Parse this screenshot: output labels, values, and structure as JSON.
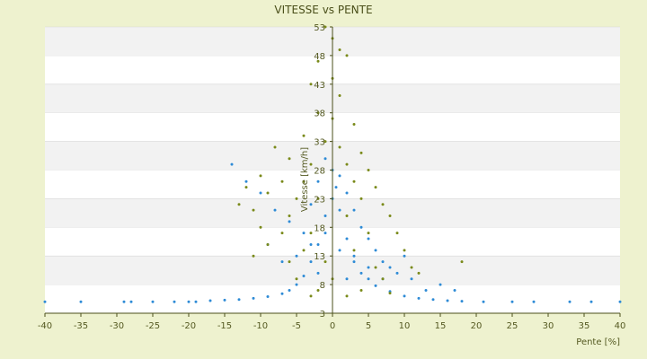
{
  "chart_data": {
    "type": "scatter",
    "title": "VITESSE vs PENTE",
    "xlabel": "Pente [%]",
    "ylabel": "Vitesse [km/h]",
    "xlim": [
      -40,
      40
    ],
    "ylim": [
      3,
      53
    ],
    "x_ticks": [
      "-40",
      "-35",
      "-30",
      "-25",
      "-20",
      "-15",
      "-10",
      "-5",
      "0",
      "5",
      "10",
      "15",
      "20",
      "25",
      "30",
      "35",
      "40"
    ],
    "y_ticks": [
      "3",
      "8",
      "13",
      "18",
      "23",
      "28",
      "33",
      "38",
      "43",
      "48",
      "53"
    ],
    "grid": "horizontal-bands",
    "colors": {
      "background": "#eef2cf",
      "plot": "#ffffff",
      "band": "#f2f2f2",
      "axis": "#4a4f1a"
    },
    "series": [
      {
        "color": "#2e8bd6",
        "marker": "dot",
        "points": [
          [
            -40,
            5
          ],
          [
            -35,
            5
          ],
          [
            -29,
            5
          ],
          [
            -28,
            5
          ],
          [
            -25,
            5
          ],
          [
            -22,
            5
          ],
          [
            -20,
            5
          ],
          [
            -19,
            5
          ],
          [
            -17,
            5.2
          ],
          [
            -15,
            5.3
          ],
          [
            -13,
            5.4
          ],
          [
            -11,
            5.6
          ],
          [
            -9,
            5.9
          ],
          [
            -7,
            6.4
          ],
          [
            -6,
            7
          ],
          [
            -5,
            8
          ],
          [
            -4,
            9.5
          ],
          [
            -3,
            12
          ],
          [
            -2,
            15
          ],
          [
            -1,
            20
          ],
          [
            0,
            23
          ],
          [
            0.5,
            25
          ],
          [
            1,
            21
          ],
          [
            2,
            16
          ],
          [
            3,
            12
          ],
          [
            4,
            10
          ],
          [
            5,
            9
          ],
          [
            6,
            7.8
          ],
          [
            8,
            6.8
          ],
          [
            10,
            6
          ],
          [
            12,
            5.6
          ],
          [
            14,
            5.4
          ],
          [
            16,
            5.2
          ],
          [
            18,
            5.1
          ],
          [
            21,
            5
          ],
          [
            25,
            5
          ],
          [
            28,
            5
          ],
          [
            33,
            5
          ],
          [
            36,
            5
          ],
          [
            40,
            5
          ],
          [
            -14,
            29
          ],
          [
            -12,
            26
          ],
          [
            -10,
            24
          ],
          [
            -8,
            21
          ],
          [
            -6,
            19
          ],
          [
            -4,
            17
          ],
          [
            -3,
            22
          ],
          [
            -2,
            26
          ],
          [
            -1,
            30
          ],
          [
            0,
            28
          ],
          [
            1,
            27
          ],
          [
            2,
            24
          ],
          [
            3,
            21
          ],
          [
            4,
            18
          ],
          [
            5,
            16
          ],
          [
            6,
            14
          ],
          [
            7,
            12
          ],
          [
            8,
            11
          ],
          [
            9,
            10
          ],
          [
            10,
            13
          ],
          [
            11,
            9
          ],
          [
            13,
            7
          ],
          [
            15,
            8
          ],
          [
            17,
            7
          ],
          [
            -5,
            13
          ],
          [
            -3,
            15
          ],
          [
            -1,
            17
          ],
          [
            1,
            14
          ],
          [
            3,
            13
          ],
          [
            5,
            11
          ],
          [
            7,
            9
          ],
          [
            -7,
            12
          ],
          [
            -9,
            15
          ],
          [
            -2,
            10
          ],
          [
            2,
            9
          ]
        ]
      },
      {
        "color": "#7a8a1a",
        "marker": "dot",
        "points": [
          [
            -1,
            53
          ],
          [
            -2,
            47
          ],
          [
            0,
            51
          ],
          [
            1,
            49
          ],
          [
            2,
            48
          ],
          [
            -3,
            43
          ],
          [
            0,
            44
          ],
          [
            1,
            41
          ],
          [
            -2,
            38
          ],
          [
            0,
            37
          ],
          [
            3,
            36
          ],
          [
            -4,
            34
          ],
          [
            -1,
            33
          ],
          [
            1,
            32
          ],
          [
            4,
            31
          ],
          [
            -8,
            32
          ],
          [
            -6,
            30
          ],
          [
            -3,
            29
          ],
          [
            2,
            29
          ],
          [
            5,
            28
          ],
          [
            -10,
            27
          ],
          [
            -7,
            26
          ],
          [
            -4,
            26
          ],
          [
            3,
            26
          ],
          [
            6,
            25
          ],
          [
            -12,
            25
          ],
          [
            -9,
            24
          ],
          [
            -5,
            23
          ],
          [
            -2,
            23
          ],
          [
            4,
            23
          ],
          [
            7,
            22
          ],
          [
            -13,
            22
          ],
          [
            -11,
            21
          ],
          [
            -6,
            20
          ],
          [
            2,
            20
          ],
          [
            8,
            20
          ],
          [
            -10,
            18
          ],
          [
            -7,
            17
          ],
          [
            -3,
            17
          ],
          [
            5,
            17
          ],
          [
            9,
            17
          ],
          [
            -9,
            15
          ],
          [
            -4,
            14
          ],
          [
            3,
            14
          ],
          [
            10,
            14
          ],
          [
            -6,
            12
          ],
          [
            -1,
            12
          ],
          [
            6,
            11
          ],
          [
            11,
            11
          ],
          [
            -5,
            9
          ],
          [
            0,
            9
          ],
          [
            7,
            9
          ],
          [
            -2,
            7
          ],
          [
            4,
            7
          ],
          [
            8,
            6.5
          ],
          [
            -3,
            6
          ],
          [
            2,
            6
          ],
          [
            18,
            12
          ],
          [
            -11,
            13
          ],
          [
            12,
            10
          ]
        ]
      }
    ]
  }
}
